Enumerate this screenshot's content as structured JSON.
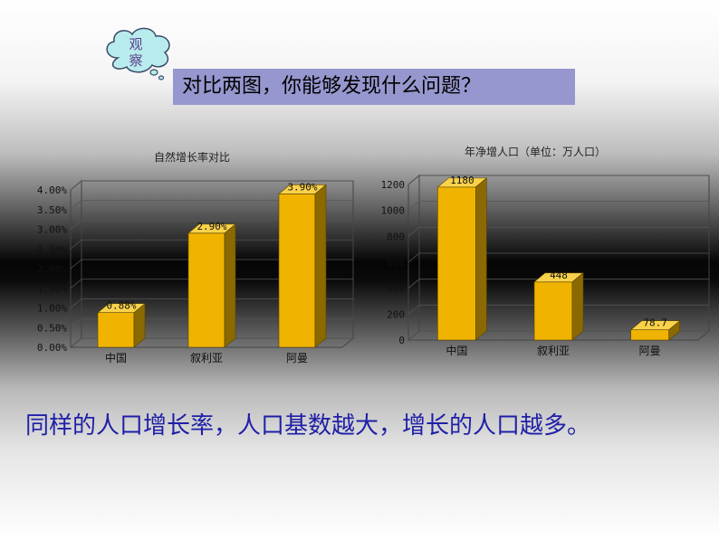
{
  "cloud": {
    "line1": "观",
    "line2": "察"
  },
  "question": "对比两图，你能够发现什么问题？",
  "conclusion": "同样的人口增长率，人口基数越大，增长的人口越多。",
  "colors": {
    "bar_front": "#f0b400",
    "bar_top": "#fad24a",
    "bar_side": "#8a6a00",
    "question_bg": "#9797cf",
    "conclusion_text": "#1f1fa8"
  },
  "chart_data": [
    {
      "type": "bar",
      "title": "自然增长率对比",
      "categories": [
        "中国",
        "叙利亚",
        "阿曼"
      ],
      "values": [
        0.88,
        2.9,
        3.9
      ],
      "value_labels": [
        "0.88%",
        "2.90%",
        "3.90%"
      ],
      "yticks": [
        "0.00%",
        "0.50%",
        "1.00%",
        "1.50%",
        "2.00%",
        "2.50%",
        "3.00%",
        "3.50%",
        "4.00%"
      ],
      "ylim": [
        0,
        4
      ],
      "grid": true,
      "style": "3d"
    },
    {
      "type": "bar",
      "title": "年净增人口（单位：万人口）",
      "categories": [
        "中国",
        "叙利亚",
        "阿曼"
      ],
      "values": [
        1180,
        448,
        78.7
      ],
      "value_labels": [
        "1180",
        "448",
        "78.7"
      ],
      "yticks": [
        "0",
        "200",
        "400",
        "600",
        "800",
        "1000",
        "1200"
      ],
      "ylim": [
        0,
        1200
      ],
      "grid": true,
      "style": "3d"
    }
  ]
}
